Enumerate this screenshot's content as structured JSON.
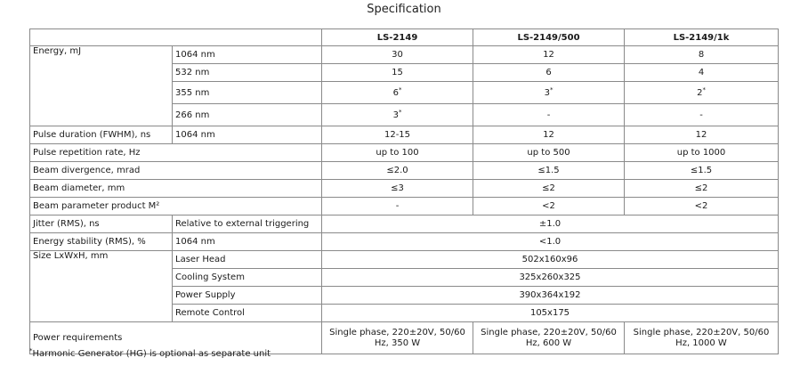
{
  "title": "Specification",
  "headers": {
    "col1": "LS-2149",
    "col2": "LS-2149/500",
    "col3": "LS-2149/1k"
  },
  "energy": {
    "label": "Energy, mJ",
    "rows": [
      {
        "wl": "1064 nm",
        "v1": "30",
        "v2": "12",
        "v3": "8"
      },
      {
        "wl": "532 nm",
        "v1": "15",
        "v2": "6",
        "v3": "4"
      },
      {
        "wl": "355 nm",
        "v1": "6",
        "v2": "3",
        "v3": "2"
      },
      {
        "wl": "266 nm",
        "v1": "3",
        "v2": "-",
        "v3": "-"
      }
    ],
    "footnote_mark": "*"
  },
  "pulse_duration": {
    "label": "Pulse duration (FWHM), ns",
    "wl": "1064 nm",
    "v1": "12-15",
    "v2": "12",
    "v3": "12"
  },
  "rep_rate": {
    "label": "Pulse repetition rate, Hz",
    "v1": "up to 100",
    "v2": "up to 500",
    "v3": "up to 1000"
  },
  "divergence": {
    "label": "Beam divergence, mrad",
    "v1": "≤2.0",
    "v2": "≤1.5",
    "v3": "≤1.5"
  },
  "diameter": {
    "label": "Beam diameter, mm",
    "v1": "≤3",
    "v2": "≤2",
    "v3": "≤2"
  },
  "m2": {
    "label": "Beam parameter product M²",
    "v1": "-",
    "v2": "<2",
    "v3": "<2"
  },
  "jitter": {
    "label": "Jitter (RMS), ns",
    "sub": "Relative to external triggering",
    "value": "±1.0"
  },
  "stability": {
    "label": "Energy stability (RMS), %",
    "sub": "1064 nm",
    "value": "<1.0"
  },
  "size": {
    "label": "Size LxWxH, mm",
    "rows": [
      {
        "part": "Laser Head",
        "value": "502x160x96"
      },
      {
        "part": "Cooling System",
        "value": "325x260x325"
      },
      {
        "part": "Power Supply",
        "value": "390x364x192"
      },
      {
        "part": "Remote Control",
        "value": "105x175"
      }
    ]
  },
  "power": {
    "label": "Power requirements",
    "v1": "Single phase, 220±20V, 50/60 Hz, 350 W",
    "v2": "Single phase, 220±20V, 50/60 Hz, 600 W",
    "v3": "Single phase, 220±20V, 50/60 Hz, 1000 W"
  },
  "footnote": {
    "mark": "*",
    "text": "Harmonic Generator (HG) is optional as separate unit"
  }
}
